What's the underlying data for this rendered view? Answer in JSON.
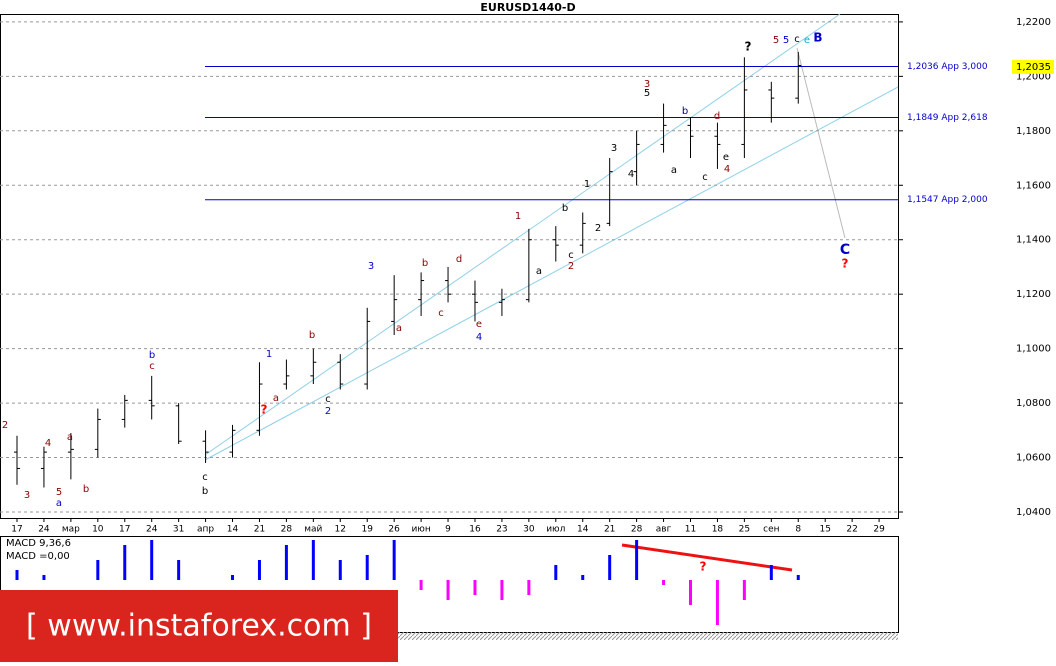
{
  "chart_data": {
    "type": "ohlc",
    "title": "EURUSD1440-D",
    "categories": [
      "17",
      "24",
      "мар",
      "10",
      "17",
      "24",
      "31",
      "апр",
      "14",
      "21",
      "28",
      "май",
      "12",
      "19",
      "26",
      "июн",
      "9",
      "16",
      "23",
      "30",
      "июл",
      "14",
      "21",
      "28",
      "авг",
      "11",
      "18",
      "25",
      "сен",
      "8",
      "15",
      "22",
      "29"
    ],
    "open": [
      1.062,
      1.056,
      1.062,
      1.063,
      1.074,
      1.081,
      1.079,
      1.066,
      1.062,
      1.07,
      1.087,
      1.09,
      1.095,
      1.087,
      1.11,
      1.118,
      1.125,
      1.12,
      1.117,
      1.118,
      1.14,
      1.138,
      1.146,
      1.165,
      1.175,
      1.182,
      1.178,
      1.175,
      1.195,
      1.192,
      null,
      null,
      null
    ],
    "high": [
      1.068,
      1.064,
      1.069,
      1.078,
      1.083,
      1.09,
      1.08,
      1.07,
      1.072,
      1.095,
      1.096,
      1.1,
      1.098,
      1.115,
      1.127,
      1.128,
      1.13,
      1.125,
      1.122,
      1.144,
      1.145,
      1.15,
      1.17,
      1.18,
      1.19,
      1.185,
      1.183,
      1.207,
      1.198,
      1.209,
      null,
      null,
      null
    ],
    "low": [
      1.05,
      1.049,
      1.052,
      1.06,
      1.071,
      1.074,
      1.065,
      1.058,
      1.06,
      1.068,
      1.085,
      1.087,
      1.085,
      1.085,
      1.105,
      1.112,
      1.117,
      1.11,
      1.112,
      1.117,
      1.132,
      1.135,
      1.145,
      1.16,
      1.172,
      1.17,
      1.166,
      1.17,
      1.183,
      1.19,
      null,
      null,
      null
    ],
    "close": [
      1.056,
      1.062,
      1.063,
      1.074,
      1.081,
      1.079,
      1.066,
      1.062,
      1.07,
      1.087,
      1.09,
      1.095,
      1.087,
      1.11,
      1.118,
      1.125,
      1.12,
      1.117,
      1.118,
      1.14,
      1.138,
      1.146,
      1.165,
      1.175,
      1.182,
      1.178,
      1.175,
      1.195,
      1.192,
      1.204,
      null,
      null,
      null
    ],
    "color": "#000000",
    "ylim": [
      1.0378,
      1.2229
    ],
    "yticks": [
      {
        "value": 1.22,
        "label": "1,2200"
      },
      {
        "value": 1.2,
        "label": "1,2000"
      },
      {
        "value": 1.18,
        "label": "1,1800"
      },
      {
        "value": 1.16,
        "label": "1,1600"
      },
      {
        "value": 1.14,
        "label": "1,1400"
      },
      {
        "value": 1.12,
        "label": "1,1200"
      },
      {
        "value": 1.1,
        "label": "1,1000"
      },
      {
        "value": 1.08,
        "label": "1,0800"
      },
      {
        "value": 1.06,
        "label": "1,0600"
      },
      {
        "value": 1.04,
        "label": "1,0400"
      }
    ],
    "grid": true,
    "levels": [
      {
        "value": 1.2036,
        "label": "1,2036 App 3,000"
      },
      {
        "value": 1.1849,
        "label": "1,1849 App 2,618"
      },
      {
        "value": 1.1547,
        "label": "1,1547 App 2,000"
      }
    ],
    "level_color": "#0000cc",
    "last_price": {
      "value": 1.2035,
      "label": "1,2035"
    },
    "annotations": [
      {
        "text": "2",
        "color": "#8b0000"
      },
      {
        "text": "3",
        "color": "#8b0000"
      },
      {
        "text": "4",
        "color": "#8b0000"
      },
      {
        "text": "5",
        "color": "#8b0000"
      },
      {
        "text": "a",
        "color": "#0000cc"
      },
      {
        "text": "a",
        "color": "#8b0000"
      },
      {
        "text": "b",
        "color": "#8b0000"
      },
      {
        "text": "b",
        "color": "#0000cc"
      },
      {
        "text": "c",
        "color": "#8b0000"
      },
      {
        "text": "c",
        "color": "#000000"
      },
      {
        "text": "b",
        "color": "#000000"
      },
      {
        "text": "?",
        "color": "#ff0000"
      },
      {
        "text": "1",
        "color": "#0000cc"
      },
      {
        "text": "a",
        "color": "#8b0000"
      },
      {
        "text": "2",
        "color": "#0000cc"
      },
      {
        "text": "c",
        "color": "#000000"
      },
      {
        "text": "b",
        "color": "#8b0000"
      },
      {
        "text": "3",
        "color": "#0000cc"
      },
      {
        "text": "a",
        "color": "#8b0000"
      },
      {
        "text": "b",
        "color": "#8b0000"
      },
      {
        "text": "c",
        "color": "#8b0000"
      },
      {
        "text": "d",
        "color": "#8b0000"
      },
      {
        "text": "e",
        "color": "#8b0000"
      },
      {
        "text": "4",
        "color": "#0000cc"
      },
      {
        "text": "1",
        "color": "#8b0000"
      },
      {
        "text": "a",
        "color": "#000000"
      },
      {
        "text": "b",
        "color": "#000000"
      },
      {
        "text": "c",
        "color": "#000000"
      },
      {
        "text": "2",
        "color": "#8b0000"
      },
      {
        "text": "1",
        "color": "#000000"
      },
      {
        "text": "2",
        "color": "#000000"
      },
      {
        "text": "3",
        "color": "#000000"
      },
      {
        "text": "4",
        "color": "#000000"
      },
      {
        "text": "3",
        "color": "#8b0000"
      },
      {
        "text": "5",
        "color": "#000000"
      },
      {
        "text": "a",
        "color": "#000000"
      },
      {
        "text": "b",
        "color": "#000080"
      },
      {
        "text": "c",
        "color": "#000000"
      },
      {
        "text": "d",
        "color": "#8b0000"
      },
      {
        "text": "e",
        "color": "#000000"
      },
      {
        "text": "4",
        "color": "#8b0000"
      },
      {
        "text": "?",
        "color": "#000000"
      },
      {
        "text": "5",
        "color": "#8b0000"
      },
      {
        "text": "5",
        "color": "#0000cc"
      },
      {
        "text": "c",
        "color": "#000000"
      },
      {
        "text": "e",
        "color": "#00aacc"
      },
      {
        "text": "B",
        "color": "#0000cc"
      },
      {
        "text": "C",
        "color": "#0000cc"
      },
      {
        "text": "?",
        "color": "#ff0000"
      },
      {
        "text": "?",
        "color": "#ff0000"
      }
    ],
    "macd": {
      "label": "MACD 9,36,6",
      "value_text": "MACD =0,00",
      "values": [
        0.002,
        0.001,
        0.0,
        0.004,
        0.007,
        0.008,
        0.004,
        0.0,
        0.001,
        0.004,
        0.007,
        0.008,
        0.004,
        0.005,
        0.008,
        -0.002,
        -0.004,
        -0.003,
        -0.004,
        -0.003,
        0.003,
        0.001,
        0.005,
        0.008,
        -0.001,
        -0.005,
        -0.009,
        -0.004,
        0.003,
        0.001,
        null,
        null,
        null
      ],
      "ylim": [
        -0.0104,
        0.0084
      ],
      "up_color": "#0000ff",
      "down_color": "#ff00ff"
    },
    "watermark": "[ www.instaforex.com ]"
  }
}
